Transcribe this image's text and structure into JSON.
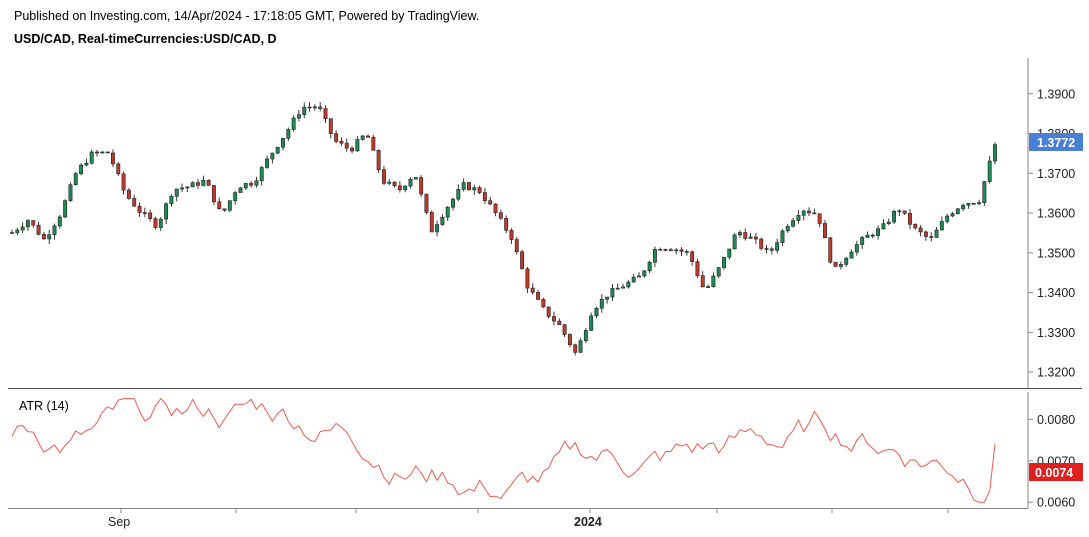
{
  "header": {
    "published": "Published on Investing.com, 14/Apr/2024 - 17:18:05 GMT, Powered by TradingView.",
    "symbol": "USD/CAD, Real-timeCurrencies:USD/CAD, D"
  },
  "chart_data": [
    {
      "type": "candlestick",
      "title": "USD/CAD, Real-timeCurrencies:USD/CAD, D",
      "price_ticks": [
        "1.3900",
        "1.3800",
        "1.3700",
        "1.3600",
        "1.3500",
        "1.3400",
        "1.3300",
        "1.3200"
      ],
      "ylim": [
        1.316,
        1.399
      ],
      "last_price": 1.3772,
      "last_price_label": "1.3772",
      "x_ticks": [
        "Sep",
        "2024"
      ],
      "colors": {
        "up": "#1e8a55",
        "down": "#c0392b",
        "label": "#4a7fd6"
      },
      "closes": [
        1.3551,
        1.3583,
        1.3533,
        1.3597,
        1.3703,
        1.375,
        1.3752,
        1.365,
        1.3601,
        1.3568,
        1.366,
        1.3667,
        1.3682,
        1.3593,
        1.3667,
        1.3678,
        1.3744,
        1.3802,
        1.3866,
        1.3869,
        1.3782,
        1.3759,
        1.3801,
        1.3681,
        1.3657,
        1.3701,
        1.3554,
        1.3615,
        1.367,
        1.3656,
        1.36,
        1.3539,
        1.3415,
        1.3356,
        1.3316,
        1.3245,
        1.3356,
        1.3397,
        1.3419,
        1.3441,
        1.3516,
        1.3512,
        1.3498,
        1.3402,
        1.3469,
        1.3555,
        1.3533,
        1.3497,
        1.3567,
        1.3611,
        1.3597,
        1.3452,
        1.3505,
        1.354,
        1.3562,
        1.3613,
        1.356,
        1.3532,
        1.3592,
        1.3625,
        1.3631,
        1.3772
      ]
    },
    {
      "type": "line",
      "title": "ATR (14)",
      "series": [
        {
          "name": "ATR (14)",
          "color": "#f05a4f"
        }
      ],
      "y_ticks": [
        "0.0080",
        "0.0070",
        "0.0060"
      ],
      "ylim": [
        0.00586,
        0.00866
      ],
      "last_value": 0.0074,
      "last_value_label": "0.0074",
      "label_color": "#e0201d"
    }
  ]
}
